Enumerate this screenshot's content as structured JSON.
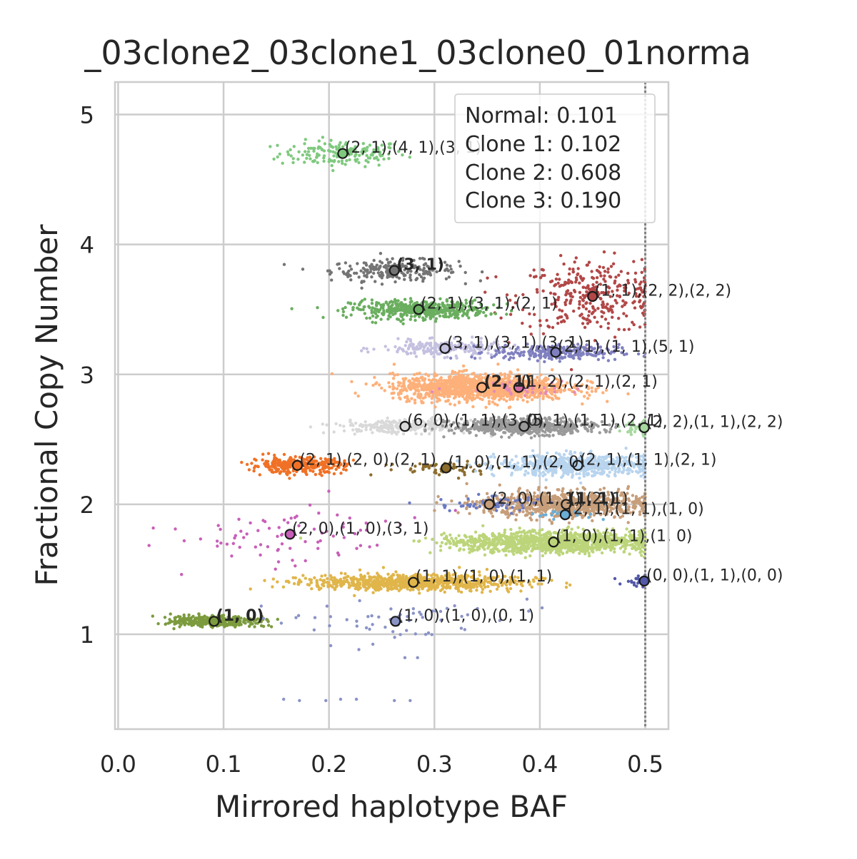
{
  "chart_data": {
    "type": "scatter",
    "title": "_03clone2_03clone1_03clone0_01norma",
    "xlabel": "Mirrored haplotype BAF",
    "ylabel": "Fractional Copy Number",
    "xlim": [
      -0.003,
      0.522
    ],
    "ylim": [
      0.27,
      5.25
    ],
    "xticks": [
      0.0,
      0.1,
      0.2,
      0.3,
      0.4,
      0.5
    ],
    "xtick_labels": [
      "0.0",
      "0.1",
      "0.2",
      "0.3",
      "0.4",
      "0.5"
    ],
    "yticks": [
      1,
      2,
      3,
      4,
      5
    ],
    "ytick_labels": [
      "1",
      "2",
      "3",
      "4",
      "5"
    ],
    "grid": true,
    "legend_position": "top-right",
    "legend_entries": [
      "Normal: 0.101",
      "Clone 1: 0.102",
      "Clone 2: 0.608",
      "Clone 3: 0.190"
    ],
    "reference_line_x": 0.5,
    "clusters": [
      {
        "color": "#7fc97f",
        "x": 0.213,
        "y": 4.7,
        "sx": 0.03,
        "sy": 0.05,
        "n": 160,
        "label": "(2, 1),(4, 1),(3, 1)",
        "bold": false,
        "center_fill": "#7fc97f"
      },
      {
        "color": "#747474",
        "x": 0.262,
        "y": 3.8,
        "sx": 0.03,
        "sy": 0.04,
        "n": 230,
        "label": "(3, 1)",
        "bold": true,
        "center_fill": "#747474"
      },
      {
        "color": "#b24747",
        "x": 0.45,
        "y": 3.6,
        "sx": 0.035,
        "sy": 0.14,
        "n": 330,
        "label": "(1, 1),(2, 2),(2, 2)",
        "bold": false,
        "center_fill": "#b24747"
      },
      {
        "color": "#6aae5f",
        "x": 0.285,
        "y": 3.5,
        "sx": 0.032,
        "sy": 0.035,
        "n": 470,
        "label": "(2, 1),(3, 1),(2, 1)",
        "bold": false,
        "center_fill": "#6aae5f"
      },
      {
        "color": "#c4c0e0",
        "x": 0.31,
        "y": 3.2,
        "sx": 0.03,
        "sy": 0.03,
        "n": 220,
        "label": "(3, 1),(3, 1),(3, 1)",
        "bold": false,
        "center_fill": "#c4c0e0"
      },
      {
        "color": "#8080c0",
        "x": 0.415,
        "y": 3.17,
        "sx": 0.03,
        "sy": 0.03,
        "n": 260,
        "label": "(2, 1),(1, 1),(5, 1)",
        "bold": false,
        "center_fill": "#8080c0"
      },
      {
        "color": "#fdb07a",
        "x": 0.345,
        "y": 2.9,
        "sx": 0.042,
        "sy": 0.05,
        "n": 1300,
        "label": "(2, 1)",
        "bold": true,
        "center_fill": "#fdb07a"
      },
      {
        "color": "#e58bb8",
        "x": 0.38,
        "y": 2.9,
        "sx": 0.03,
        "sy": 0.03,
        "n": 40,
        "label": "(1, 2),(2, 1),(2, 1)",
        "bold": false,
        "center_fill": "#d36ba3"
      },
      {
        "color": "#d9d9d9",
        "x": 0.272,
        "y": 2.6,
        "sx": 0.032,
        "sy": 0.025,
        "n": 260,
        "label": "(6, 0),(1, 1),(3, 0)",
        "bold": false,
        "center_fill": "#d9d9d9"
      },
      {
        "color": "#9a9a9a",
        "x": 0.385,
        "y": 2.6,
        "sx": 0.034,
        "sy": 0.03,
        "n": 620,
        "label": "(5, 1),(1, 1),(2, 1)",
        "bold": false,
        "center_fill": "#9a9a9a"
      },
      {
        "color": "#a8d8a0",
        "x": 0.499,
        "y": 2.59,
        "sx": 0.01,
        "sy": 0.03,
        "n": 70,
        "label": "(2, 2),(1, 1),(2, 2)",
        "bold": false,
        "center_fill": "#a8d8a0"
      },
      {
        "color": "#f07126",
        "x": 0.17,
        "y": 2.3,
        "sx": 0.022,
        "sy": 0.03,
        "n": 340,
        "label": "(2, 1),(2, 0),(2, 1)",
        "bold": false,
        "center_fill": "#f07126"
      },
      {
        "color": "#8c6d2c",
        "x": 0.311,
        "y": 2.28,
        "sx": 0.03,
        "sy": 0.03,
        "n": 60,
        "label": "(1, 0),(1, 1),(2, 0)",
        "bold": false,
        "center_fill": "#8c6d2c"
      },
      {
        "color": "#b8d4ee",
        "x": 0.436,
        "y": 2.3,
        "sx": 0.038,
        "sy": 0.04,
        "n": 650,
        "label": "(2, 1),(1, 1),(2, 1)",
        "bold": false,
        "center_fill": "#b8d4ee"
      },
      {
        "color": "#c79e7a",
        "x": 0.425,
        "y": 2.0,
        "sx": 0.04,
        "sy": 0.05,
        "n": 820,
        "label": "(1, 1)",
        "bold": true,
        "center_fill": "#c79e7a"
      },
      {
        "color": "#6b7ac4",
        "x": 0.352,
        "y": 2.0,
        "sx": 0.025,
        "sy": 0.03,
        "n": 60,
        "label": "(2, 0),(1, 1),(2, 1)",
        "bold": false,
        "center_fill": "#c79e7a"
      },
      {
        "color": "#6aaed6",
        "x": 0.424,
        "y": 1.92,
        "sx": 0.02,
        "sy": 0.02,
        "n": 20,
        "label": "(2, 1),(1, 1),(1, 0)",
        "bold": false,
        "center_fill": "#6aaed6"
      },
      {
        "color": "#c85fb8",
        "x": 0.163,
        "y": 1.77,
        "sx": 0.06,
        "sy": 0.12,
        "n": 80,
        "label": "(2, 0),(1, 0),(3, 1)",
        "bold": false,
        "center_fill": "#c85fb8"
      },
      {
        "color": "#bcd57a",
        "x": 0.413,
        "y": 1.71,
        "sx": 0.05,
        "sy": 0.04,
        "n": 1200,
        "label": "(1, 0),(1, 1),(1, 0)",
        "bold": false,
        "center_fill": "#bcd57a"
      },
      {
        "color": "#e0b54a",
        "x": 0.28,
        "y": 1.4,
        "sx": 0.05,
        "sy": 0.03,
        "n": 900,
        "label": "(1, 1),(1, 0),(1, 1)",
        "bold": false,
        "center_fill": "#e0b54a"
      },
      {
        "color": "#5358a8",
        "x": 0.499,
        "y": 1.41,
        "sx": 0.01,
        "sy": 0.02,
        "n": 30,
        "label": "(0, 0),(1, 1),(0, 0)",
        "bold": false,
        "center_fill": "#5358a8"
      },
      {
        "color": "#7c9b3e",
        "x": 0.091,
        "y": 1.1,
        "sx": 0.02,
        "sy": 0.02,
        "n": 360,
        "label": "(1, 0)",
        "bold": true,
        "center_fill": "#7c9b3e"
      },
      {
        "color": "#8a93c6",
        "x": 0.263,
        "y": 1.1,
        "sx": 0.05,
        "sy": 0.08,
        "n": 60,
        "label": "(1, 0),(1, 0),(0, 1)",
        "bold": false,
        "center_fill": "#8a93c6"
      }
    ],
    "outliers": {
      "color": "#8a93c6",
      "points": [
        [
          0.157,
          0.5
        ],
        [
          0.172,
          0.49
        ],
        [
          0.197,
          0.49
        ],
        [
          0.211,
          0.5
        ],
        [
          0.226,
          0.5
        ],
        [
          0.262,
          0.49
        ],
        [
          0.277,
          0.49
        ],
        [
          0.272,
          0.82
        ],
        [
          0.284,
          0.82
        ]
      ]
    }
  }
}
